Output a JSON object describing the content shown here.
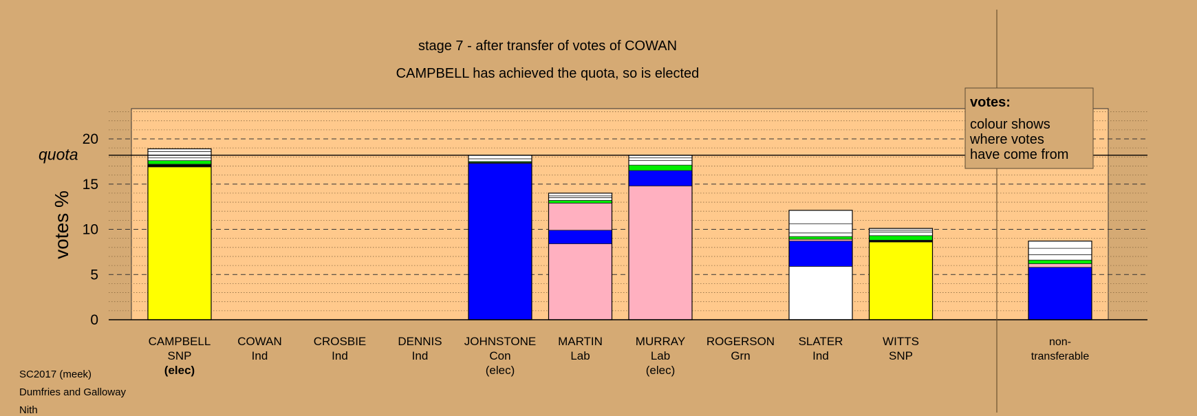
{
  "chart_data": {
    "type": "bar",
    "stacked": true,
    "title": "stage 7 - after transfer of votes of COWAN",
    "subtitle": "CAMPBELL has achieved the quota, so is elected",
    "ylabel": "votes %",
    "ylim": [
      0,
      23
    ],
    "yticks": [
      0,
      5,
      10,
      15,
      20
    ],
    "quota": 18.2,
    "quota_label": "quota",
    "grid": true,
    "legend": {
      "title": "votes:",
      "lines": [
        "colour shows",
        "where votes",
        "have come from"
      ],
      "position": "top-right"
    },
    "candidates": [
      {
        "name": "CAMPBELL",
        "party": "SNP",
        "status": "(elec)",
        "status_bold": true,
        "segments": [
          {
            "color": "#ffff00",
            "value": 16.9
          },
          {
            "color": "#000000",
            "value": 0.3
          },
          {
            "color": "#00ee00",
            "value": 0.4
          },
          {
            "color": "#ffffff",
            "value": 0.3
          },
          {
            "color": "#ffffff",
            "value": 0.3
          },
          {
            "color": "#ffffff",
            "value": 0.4
          },
          {
            "color": "#ffffff",
            "value": 0.3
          }
        ]
      },
      {
        "name": "COWAN",
        "party": "Ind",
        "status": "",
        "segments": []
      },
      {
        "name": "CROSBIE",
        "party": "Ind",
        "status": "",
        "segments": []
      },
      {
        "name": "DENNIS",
        "party": "Ind",
        "status": "",
        "segments": []
      },
      {
        "name": "JOHNSTONE",
        "party": "Con",
        "status": "(elec)",
        "segments": [
          {
            "color": "#0000ff",
            "value": 17.3
          },
          {
            "color": "#000000",
            "value": 0.1
          },
          {
            "color": "#00ee00",
            "value": 0.1
          },
          {
            "color": "#ffffff",
            "value": 0.3
          },
          {
            "color": "#ffffff",
            "value": 0.4
          }
        ]
      },
      {
        "name": "MARTIN",
        "party": "Lab",
        "status": "",
        "segments": [
          {
            "color": "#ffb0c0",
            "value": 8.4
          },
          {
            "color": "#0000ff",
            "value": 1.5
          },
          {
            "color": "#ffb0c0",
            "value": 3.0
          },
          {
            "color": "#00ee00",
            "value": 0.3
          },
          {
            "color": "#ffffff",
            "value": 0.3
          },
          {
            "color": "#ffffff",
            "value": 0.2
          },
          {
            "color": "#ffffff",
            "value": 0.3
          }
        ]
      },
      {
        "name": "MURRAY",
        "party": "Lab",
        "status": "(elec)",
        "segments": [
          {
            "color": "#ffb0c0",
            "value": 14.8
          },
          {
            "color": "#0000ff",
            "value": 1.7
          },
          {
            "color": "#00ee00",
            "value": 0.6
          },
          {
            "color": "#ffffff",
            "value": 0.5
          },
          {
            "color": "#ffffff",
            "value": 0.3
          },
          {
            "color": "#ffffff",
            "value": 0.3
          }
        ]
      },
      {
        "name": "ROGERSON",
        "party": "Grn",
        "status": "",
        "segments": []
      },
      {
        "name": "SLATER",
        "party": "Ind",
        "status": "",
        "segments": [
          {
            "color": "#ffffff",
            "value": 5.9
          },
          {
            "color": "#0000ff",
            "value": 2.8
          },
          {
            "color": "#ffb0c0",
            "value": 0.2
          },
          {
            "color": "#00ee00",
            "value": 0.3
          },
          {
            "color": "#ffffff",
            "value": 0.4
          },
          {
            "color": "#ffffff",
            "value": 1.0
          },
          {
            "color": "#ffffff",
            "value": 1.5
          }
        ]
      },
      {
        "name": "WITTS",
        "party": "SNP",
        "status": "",
        "segments": [
          {
            "color": "#ffff00",
            "value": 8.6
          },
          {
            "color": "#000000",
            "value": 0.2
          },
          {
            "color": "#00ee00",
            "value": 0.5
          },
          {
            "color": "#ffffff",
            "value": 0.4
          },
          {
            "color": "#ffffff",
            "value": 0.2
          },
          {
            "color": "#ffffff",
            "value": 0.2
          }
        ]
      }
    ],
    "nontransferable": {
      "name": "non-",
      "name2": "transferable",
      "segments": [
        {
          "color": "#0000ff",
          "value": 5.8
        },
        {
          "color": "#ffb0c0",
          "value": 0.4
        },
        {
          "color": "#00ee00",
          "value": 0.4
        },
        {
          "color": "#ffffff",
          "value": 0.6
        },
        {
          "color": "#ffffff",
          "value": 0.7
        },
        {
          "color": "#ffffff",
          "value": 0.8
        }
      ]
    },
    "colors": {
      "background": "#d5aa74",
      "plot_area": "#ffc98c",
      "snp": "#ffff00",
      "con": "#0000ff",
      "lab": "#ffb0c0",
      "grn": "#00ee00",
      "ind": "#ffffff"
    }
  },
  "footer": {
    "line1": "SC2017 (meek)",
    "line2": "Dumfries and Galloway",
    "line3": "Nith"
  }
}
